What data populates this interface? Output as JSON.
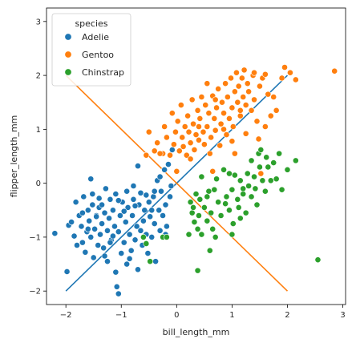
{
  "chart_data": {
    "type": "scatter",
    "xlabel": "bill_length_mm",
    "ylabel": "flipper_length_mm",
    "xlim": [
      -2.35,
      3.05
    ],
    "ylim": [
      -2.25,
      3.25
    ],
    "xticks": [
      -2,
      -1,
      0,
      1,
      2,
      3
    ],
    "yticks": [
      -2,
      -1,
      0,
      1,
      2,
      3
    ],
    "grid": false,
    "legend": {
      "title": "species",
      "placement": "top-left"
    },
    "series": [
      {
        "name": "Adelie",
        "color": "#1f77b4",
        "points": [
          [
            -2.2,
            -0.93
          ],
          [
            -1.98,
            -1.64
          ],
          [
            -1.95,
            -0.78
          ],
          [
            -1.9,
            -0.72
          ],
          [
            -1.85,
            -0.98
          ],
          [
            -1.82,
            -0.35
          ],
          [
            -1.8,
            -1.15
          ],
          [
            -1.76,
            -0.6
          ],
          [
            -1.72,
            -0.8
          ],
          [
            -1.7,
            -1.1
          ],
          [
            -1.68,
            -0.25
          ],
          [
            -1.65,
            -1.28
          ],
          [
            -1.62,
            -0.9
          ],
          [
            -1.6,
            -0.5
          ],
          [
            -1.58,
            -0.7
          ],
          [
            -1.55,
            0.08
          ],
          [
            -1.55,
            -1.0
          ],
          [
            -1.52,
            -0.4
          ],
          [
            -1.5,
            -1.38
          ],
          [
            -1.48,
            -0.85
          ],
          [
            -1.45,
            -0.6
          ],
          [
            -1.42,
            -1.15
          ],
          [
            -1.4,
            -0.28
          ],
          [
            -1.4,
            -0.45
          ],
          [
            -1.38,
            -0.95
          ],
          [
            -1.35,
            -0.75
          ],
          [
            -1.32,
            -1.2
          ],
          [
            -1.3,
            -0.55
          ],
          [
            -1.28,
            -0.1
          ],
          [
            -1.25,
            -0.88
          ],
          [
            -1.25,
            -1.45
          ],
          [
            -1.22,
            -0.65
          ],
          [
            -1.2,
            -0.3
          ],
          [
            -1.18,
            -1.05
          ],
          [
            -1.15,
            -0.5
          ],
          [
            -1.12,
            -0.8
          ],
          [
            -1.1,
            -1.65
          ],
          [
            -1.1,
            -0.2
          ],
          [
            -1.08,
            -1.92
          ],
          [
            -1.05,
            -2.05
          ],
          [
            -1.05,
            -0.9
          ],
          [
            -1.02,
            -0.6
          ],
          [
            -1.0,
            -1.3
          ],
          [
            -0.98,
            -0.35
          ],
          [
            -0.95,
            -1.1
          ],
          [
            -0.92,
            -0.72
          ],
          [
            -0.9,
            -0.15
          ],
          [
            -0.9,
            -1.5
          ],
          [
            -0.88,
            -0.45
          ],
          [
            -0.85,
            -0.95
          ],
          [
            -0.82,
            -1.25
          ],
          [
            -0.8,
            -0.6
          ],
          [
            -0.78,
            -0.3
          ],
          [
            -0.75,
            -1.05
          ],
          [
            -0.72,
            -0.8
          ],
          [
            -0.7,
            -1.6
          ],
          [
            -0.68,
            -0.4
          ],
          [
            -0.65,
            -0.18
          ],
          [
            -0.62,
            -1.15
          ],
          [
            -0.6,
            -0.7
          ],
          [
            -0.58,
            -0.5
          ],
          [
            -0.55,
            -0.95
          ],
          [
            -0.52,
            -1.3
          ],
          [
            -0.5,
            -0.35
          ],
          [
            -0.48,
            -0.62
          ],
          [
            -0.45,
            -1.0
          ],
          [
            -0.42,
            -0.25
          ],
          [
            -0.4,
            -0.75
          ],
          [
            -0.38,
            -1.45
          ],
          [
            -0.35,
            0.05
          ],
          [
            -0.32,
            -0.5
          ],
          [
            -0.3,
            -0.88
          ],
          [
            -0.28,
            -0.15
          ],
          [
            -0.25,
            -0.6
          ],
          [
            -0.22,
            0.25
          ],
          [
            -0.2,
            -0.4
          ],
          [
            -0.18,
            -0.8
          ],
          [
            -0.15,
            0.35
          ],
          [
            -0.12,
            -0.25
          ],
          [
            -0.1,
            -0.05
          ],
          [
            -0.08,
            0.62
          ],
          [
            -1.45,
            -0.62
          ],
          [
            -1.35,
            -0.4
          ],
          [
            -1.15,
            -0.98
          ],
          [
            -0.95,
            -0.52
          ],
          [
            -0.75,
            -0.42
          ],
          [
            -0.55,
            -0.22
          ],
          [
            -0.4,
            -0.15
          ],
          [
            -0.3,
            0.12
          ],
          [
            -1.6,
            -0.85
          ],
          [
            -1.3,
            -1.35
          ],
          [
            -0.85,
            -1.4
          ],
          [
            -1.2,
            -1.1
          ],
          [
            -0.65,
            -0.88
          ],
          [
            -1.7,
            -0.55
          ],
          [
            -1.52,
            -0.2
          ],
          [
            -1.05,
            -0.32
          ],
          [
            -0.78,
            -0.05
          ],
          [
            -0.45,
            -0.5
          ],
          [
            -0.7,
            0.32
          ],
          [
            -0.2,
            -0.95
          ]
        ]
      },
      {
        "name": "Gentoo",
        "color": "#ff7f0e",
        "points": [
          [
            -0.55,
            0.52
          ],
          [
            -0.5,
            0.95
          ],
          [
            -0.4,
            0.6
          ],
          [
            -0.35,
            0.75
          ],
          [
            -0.25,
            0.55
          ],
          [
            -0.22,
            1.05
          ],
          [
            -0.18,
            0.85
          ],
          [
            -0.12,
            0.52
          ],
          [
            -0.08,
            1.3
          ],
          [
            -0.05,
            0.72
          ],
          [
            -0.02,
            0.95
          ],
          [
            0.02,
            1.15
          ],
          [
            0.05,
            0.6
          ],
          [
            0.08,
            1.45
          ],
          [
            0.1,
            0.85
          ],
          [
            0.12,
            0.68
          ],
          [
            0.15,
            1.05
          ],
          [
            0.18,
            0.52
          ],
          [
            0.2,
            1.25
          ],
          [
            0.22,
            0.95
          ],
          [
            0.25,
            0.75
          ],
          [
            0.28,
            1.55
          ],
          [
            0.3,
            1.1
          ],
          [
            0.32,
            0.62
          ],
          [
            0.35,
            0.9
          ],
          [
            0.38,
            1.35
          ],
          [
            0.4,
            0.8
          ],
          [
            0.42,
            1.2
          ],
          [
            0.45,
            1.6
          ],
          [
            0.48,
            0.95
          ],
          [
            0.5,
            0.72
          ],
          [
            0.52,
            1.45
          ],
          [
            0.55,
            1.05
          ],
          [
            0.58,
            1.3
          ],
          [
            0.6,
            0.55
          ],
          [
            0.62,
            0.85
          ],
          [
            0.65,
            1.62
          ],
          [
            0.68,
            1.2
          ],
          [
            0.7,
            0.98
          ],
          [
            0.72,
            1.4
          ],
          [
            0.75,
            1.75
          ],
          [
            0.78,
            0.7
          ],
          [
            0.8,
            1.1
          ],
          [
            0.82,
            1.5
          ],
          [
            0.85,
            1.3
          ],
          [
            0.88,
            1.85
          ],
          [
            0.9,
            0.9
          ],
          [
            0.92,
            1.6
          ],
          [
            0.95,
            1.2
          ],
          [
            0.98,
            1.95
          ],
          [
            1.0,
            1.4
          ],
          [
            1.02,
            1.05
          ],
          [
            1.05,
            1.7
          ],
          [
            1.08,
            2.05
          ],
          [
            1.1,
            1.5
          ],
          [
            1.12,
            1.8
          ],
          [
            1.15,
            1.25
          ],
          [
            1.18,
            1.95
          ],
          [
            1.2,
            1.6
          ],
          [
            1.22,
            2.1
          ],
          [
            1.25,
            1.45
          ],
          [
            1.28,
            1.85
          ],
          [
            1.3,
            1.7
          ],
          [
            1.35,
            1.35
          ],
          [
            1.38,
            2.0
          ],
          [
            1.4,
            1.55
          ],
          [
            1.45,
            1.15
          ],
          [
            1.5,
            1.8
          ],
          [
            1.55,
            1.95
          ],
          [
            1.6,
            1.05
          ],
          [
            1.65,
            1.65
          ],
          [
            1.48,
            0.82
          ],
          [
            1.52,
            0.18
          ],
          [
            1.7,
            1.25
          ],
          [
            1.75,
            1.6
          ],
          [
            1.8,
            1.35
          ],
          [
            1.9,
            1.95
          ],
          [
            1.95,
            2.15
          ],
          [
            2.05,
            2.05
          ],
          [
            2.15,
            1.92
          ],
          [
            2.85,
            2.08
          ],
          [
            0.0,
            0.22
          ],
          [
            0.65,
            0.22
          ],
          [
            1.05,
            0.55
          ],
          [
            1.25,
            0.92
          ],
          [
            1.6,
            2.02
          ],
          [
            1.4,
            2.05
          ],
          [
            0.55,
            1.85
          ],
          [
            0.25,
            0.45
          ],
          [
            0.85,
            1.0
          ],
          [
            1.15,
            1.35
          ],
          [
            0.4,
            1.05
          ],
          [
            -0.3,
            0.55
          ],
          [
            1.0,
            0.78
          ],
          [
            0.7,
            1.55
          ]
        ]
      },
      {
        "name": "Chinstrap",
        "color": "#2ca02c",
        "points": [
          [
            -0.6,
            -1.0
          ],
          [
            -0.55,
            -1.12
          ],
          [
            -0.48,
            -1.45
          ],
          [
            -0.25,
            -1.0
          ],
          [
            -0.18,
            -1.0
          ],
          [
            0.25,
            -0.35
          ],
          [
            0.28,
            -0.55
          ],
          [
            0.3,
            -0.45
          ],
          [
            0.32,
            -0.72
          ],
          [
            0.35,
            -0.2
          ],
          [
            0.38,
            -0.85
          ],
          [
            0.4,
            -0.6
          ],
          [
            0.42,
            -0.3
          ],
          [
            0.45,
            -0.95
          ],
          [
            0.5,
            -0.45
          ],
          [
            0.55,
            -0.7
          ],
          [
            0.58,
            -0.15
          ],
          [
            0.62,
            -0.55
          ],
          [
            0.65,
            -0.85
          ],
          [
            0.7,
            -1.0
          ],
          [
            0.72,
            0.08
          ],
          [
            0.75,
            -0.35
          ],
          [
            0.8,
            -0.6
          ],
          [
            0.85,
            0.25
          ],
          [
            0.9,
            -0.25
          ],
          [
            0.95,
            -0.5
          ],
          [
            1.0,
            -0.12
          ],
          [
            1.02,
            -0.75
          ],
          [
            1.05,
            0.15
          ],
          [
            1.1,
            -0.3
          ],
          [
            1.12,
            -0.45
          ],
          [
            1.15,
            0.05
          ],
          [
            1.2,
            -0.2
          ],
          [
            1.25,
            -0.55
          ],
          [
            1.28,
            0.18
          ],
          [
            1.3,
            -0.05
          ],
          [
            1.35,
            -0.25
          ],
          [
            1.4,
            0.12
          ],
          [
            1.45,
            -0.4
          ],
          [
            1.48,
            0.55
          ],
          [
            1.5,
            0.3
          ],
          [
            1.55,
            0.05
          ],
          [
            1.6,
            -0.15
          ],
          [
            1.65,
            0.3
          ],
          [
            1.7,
            0.05
          ],
          [
            1.75,
            0.38
          ],
          [
            1.8,
            0.08
          ],
          [
            1.85,
            0.55
          ],
          [
            1.9,
            -0.12
          ],
          [
            2.0,
            0.25
          ],
          [
            2.15,
            0.42
          ],
          [
            2.55,
            -1.42
          ],
          [
            0.38,
            -1.62
          ],
          [
            0.22,
            -0.95
          ],
          [
            0.55,
            -0.25
          ],
          [
            0.95,
            0.18
          ],
          [
            1.15,
            -0.65
          ],
          [
            1.35,
            0.42
          ],
          [
            0.6,
            -1.25
          ],
          [
            1.2,
            -0.1
          ],
          [
            0.88,
            -0.38
          ],
          [
            0.45,
            0.12
          ],
          [
            1.62,
            0.48
          ],
          [
            1.0,
            -0.95
          ],
          [
            1.42,
            -0.1
          ],
          [
            0.68,
            -0.12
          ],
          [
            1.52,
            0.62
          ]
        ]
      }
    ],
    "lines": [
      {
        "series": "Adelie",
        "color": "#1f77b4",
        "x": [
          -2,
          2
        ],
        "y": [
          -2,
          2
        ]
      },
      {
        "series": "Gentoo",
        "color": "#ff7f0e",
        "x": [
          -2,
          2
        ],
        "y": [
          2,
          -2
        ]
      }
    ]
  }
}
